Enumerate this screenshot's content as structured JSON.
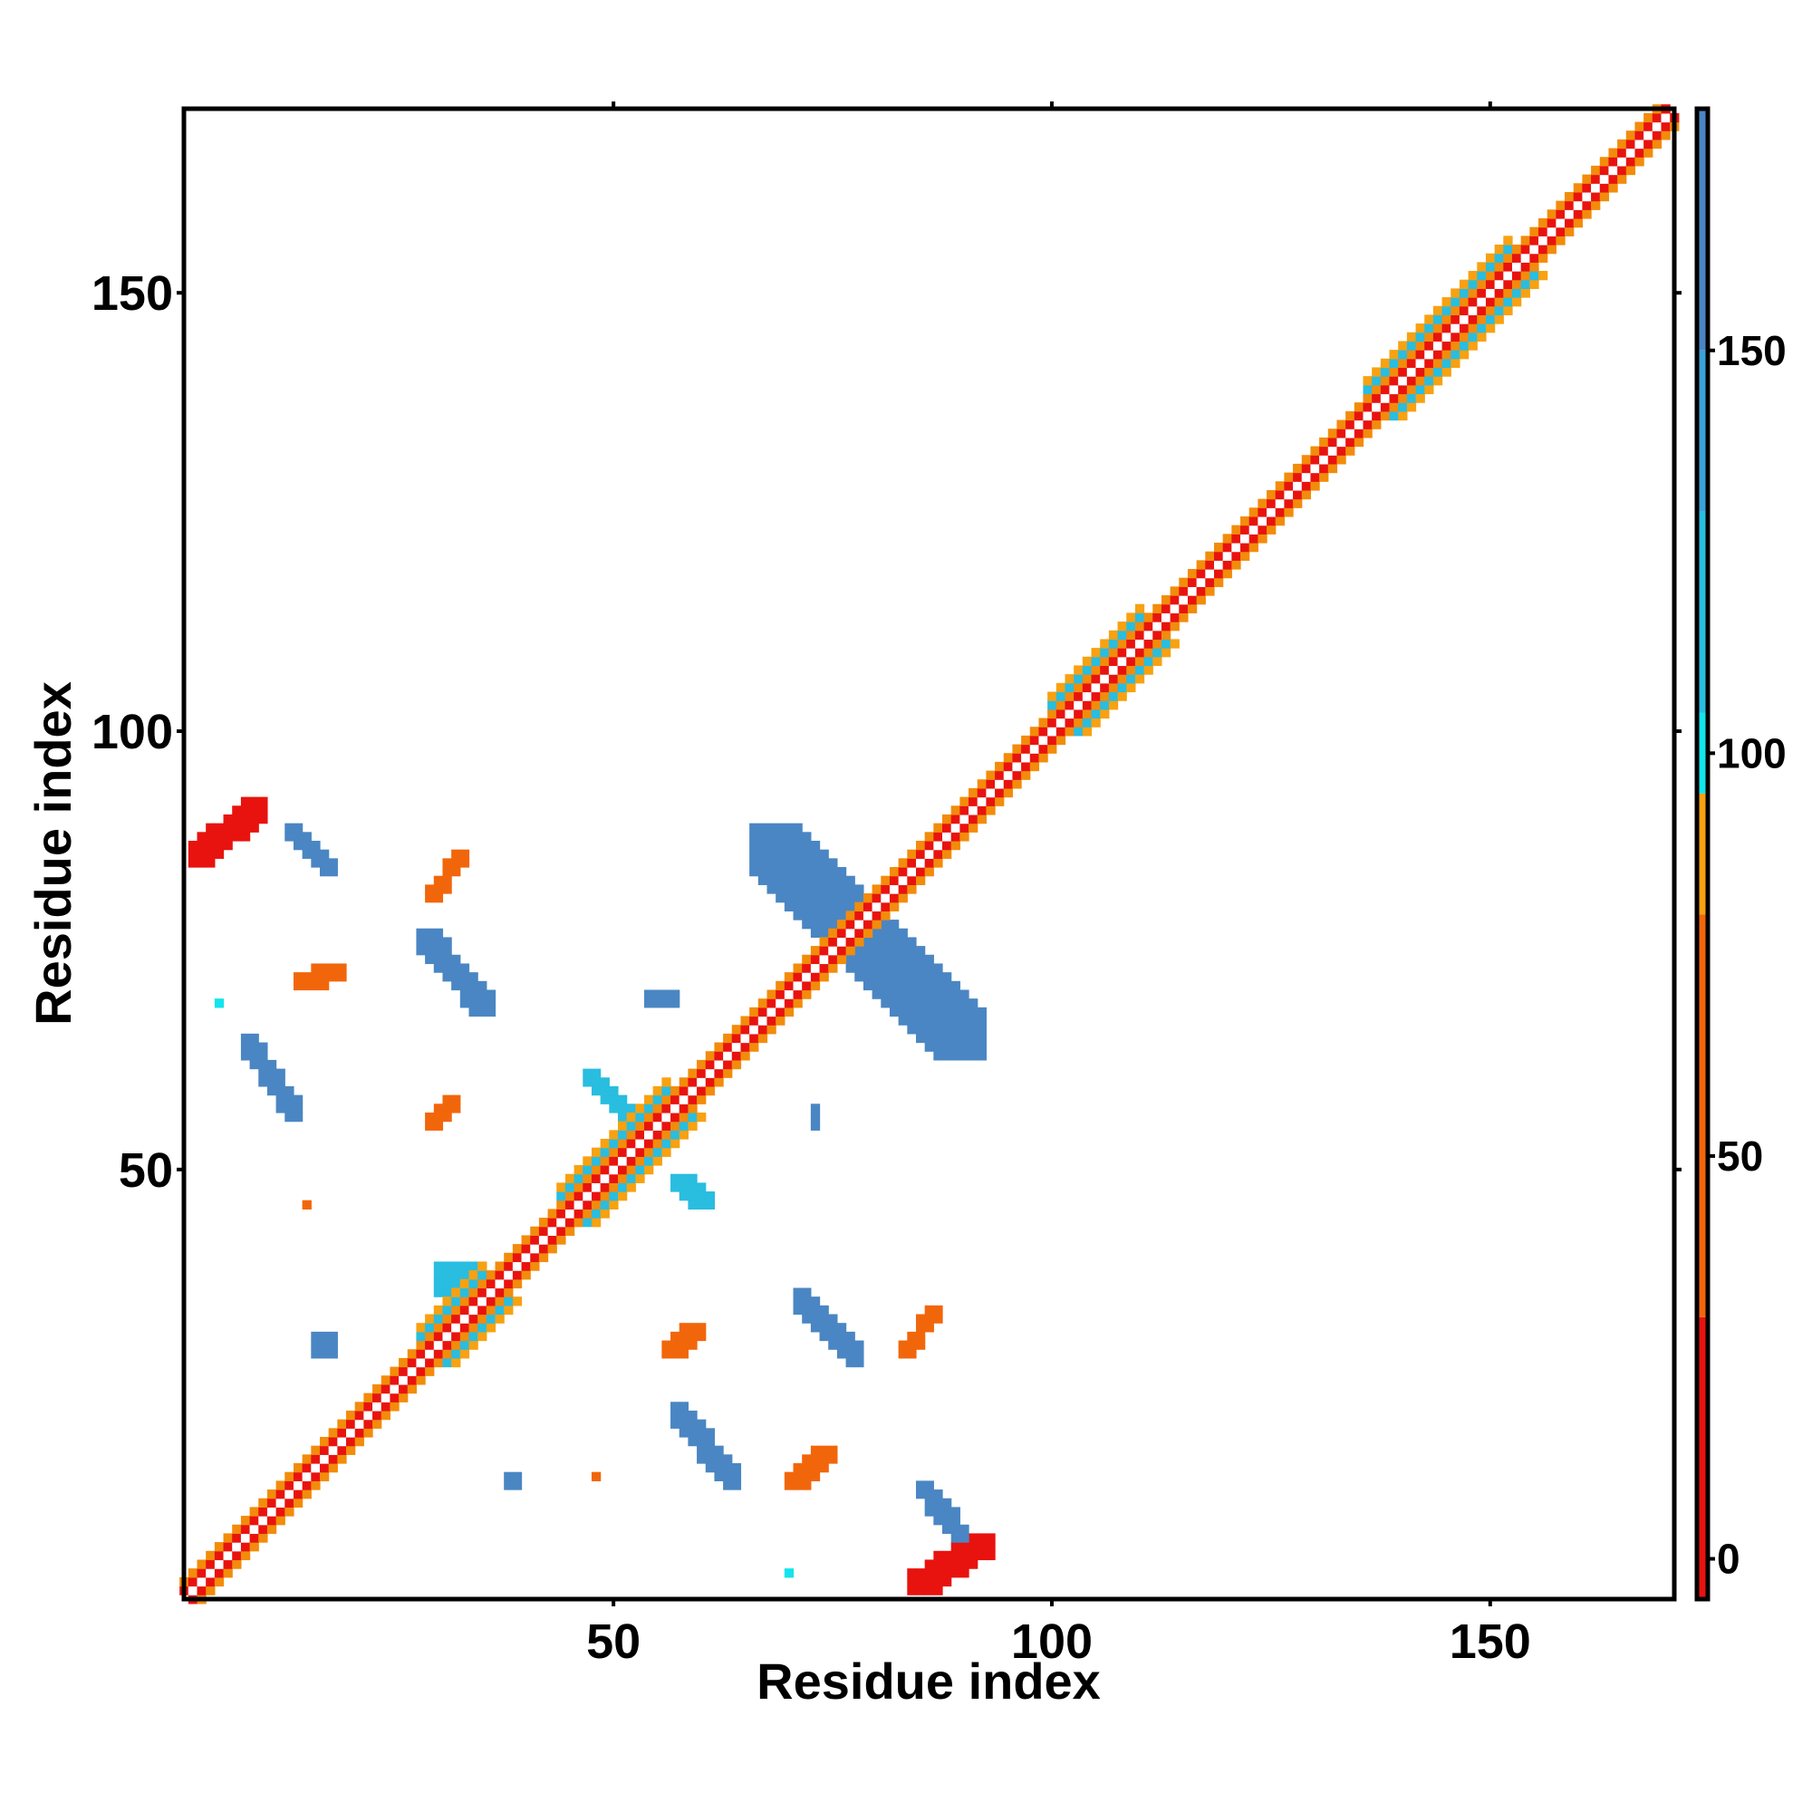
{
  "chart_data": {
    "type": "heatmap",
    "title": "",
    "xlabel": "Residue index",
    "ylabel": "Residue index",
    "xlim": [
      1,
      171
    ],
    "ylim": [
      1,
      171
    ],
    "x_ticks": [
      50,
      100,
      150
    ],
    "y_ticks": [
      50,
      100,
      150
    ],
    "grid": false,
    "legend": "colorbar-right",
    "colorbar": {
      "range": [
        -5,
        180
      ],
      "ticks": [
        0,
        50,
        100,
        150
      ],
      "bins": [
        {
          "from": -5,
          "to": 30,
          "color": "#e8130f"
        },
        {
          "from": 30,
          "to": 80,
          "color": "#f2660b"
        },
        {
          "from": 80,
          "to": 95,
          "color": "#f8a111"
        },
        {
          "from": 95,
          "to": 105,
          "color": "#12e5ec"
        },
        {
          "from": 105,
          "to": 130,
          "color": "#29bde0"
        },
        {
          "from": 130,
          "to": 150,
          "color": "#3aa2d8"
        },
        {
          "from": 150,
          "to": 180,
          "color": "#4a86c3"
        }
      ]
    },
    "diagonal": {
      "from": 1,
      "to": 170,
      "center_color": "#ffffff",
      "inner_color": "#e8130f",
      "outer_color": "#f28c0b",
      "helix_regions": [
        [
          28,
          35
        ],
        [
          44,
          56
        ],
        [
          100,
          110
        ],
        [
          136,
          152
        ]
      ]
    },
    "regions": [
      {
        "x": [
          2,
          10
        ],
        "y": [
          85,
          92
        ],
        "value": 5,
        "shape": "band-up"
      },
      {
        "x": [
          8,
          14
        ],
        "y": [
          56,
          65
        ],
        "value": 150,
        "shape": "band-down"
      },
      {
        "x": [
          28,
          36
        ],
        "y": [
          68,
          77
        ],
        "value": 150,
        "shape": "band-down"
      },
      {
        "x": [
          57,
          64
        ],
        "y": [
          14,
          23
        ],
        "value": 150,
        "shape": "band-down"
      },
      {
        "x": [
          71,
          78
        ],
        "y": [
          28,
          36
        ],
        "value": 150,
        "shape": "band-down"
      },
      {
        "x": [
          66,
          92
        ],
        "y": [
          63,
          89
        ],
        "value": 150,
        "shape": "band-down"
      },
      {
        "x": [
          84,
          93
        ],
        "y": [
          2,
          8
        ],
        "value": 5,
        "shape": "band-up"
      },
      {
        "x": [
          47,
          52
        ],
        "y": [
          56,
          61
        ],
        "value": 120,
        "shape": "band-down"
      },
      {
        "x": [
          57,
          61
        ],
        "y": [
          46,
          49
        ],
        "value": 120,
        "shape": "band-down"
      },
      {
        "x": [
          30,
          35
        ],
        "y": [
          36,
          39
        ],
        "value": 120,
        "shape": "blob"
      },
      {
        "x": [
          29,
          33
        ],
        "y": [
          81,
          86
        ],
        "value": 60,
        "shape": "band-up"
      },
      {
        "x": [
          14,
          19
        ],
        "y": [
          71,
          73
        ],
        "value": 60,
        "shape": "band-up"
      },
      {
        "x": [
          29,
          32
        ],
        "y": [
          55,
          58
        ],
        "value": 60,
        "shape": "band-up"
      },
      {
        "x": [
          56,
          60
        ],
        "y": [
          29,
          32
        ],
        "value": 60,
        "shape": "band-up"
      },
      {
        "x": [
          70,
          75
        ],
        "y": [
          14,
          18
        ],
        "value": 60,
        "shape": "band-up"
      },
      {
        "x": [
          83,
          87
        ],
        "y": [
          29,
          34
        ],
        "value": 60,
        "shape": "band-up"
      },
      {
        "x": [
          38,
          39
        ],
        "y": [
          14,
          15
        ],
        "value": 150,
        "shape": "blob"
      },
      {
        "x": [
          54,
          57
        ],
        "y": [
          69,
          70
        ],
        "value": 150,
        "shape": "blob"
      },
      {
        "x": [
          73,
          73
        ],
        "y": [
          55,
          57
        ],
        "value": 150,
        "shape": "blob"
      },
      {
        "x": [
          13,
          18
        ],
        "y": [
          84,
          89
        ],
        "value": 150,
        "shape": "band-down"
      },
      {
        "x": [
          16,
          18
        ],
        "y": [
          29,
          31
        ],
        "value": 150,
        "shape": "blob"
      },
      {
        "x": [
          85,
          90
        ],
        "y": [
          8,
          14
        ],
        "value": 150,
        "shape": "band-down"
      },
      {
        "x": [
          70,
          70
        ],
        "y": [
          4,
          4
        ],
        "value": 100,
        "shape": "blob"
      },
      {
        "x": [
          48,
          48
        ],
        "y": [
          15,
          15
        ],
        "value": 60,
        "shape": "blob"
      },
      {
        "x": [
          15,
          15
        ],
        "y": [
          46,
          46
        ],
        "value": 60,
        "shape": "blob"
      },
      {
        "x": [
          5,
          5
        ],
        "y": [
          69,
          69
        ],
        "value": 100,
        "shape": "blob"
      }
    ]
  }
}
